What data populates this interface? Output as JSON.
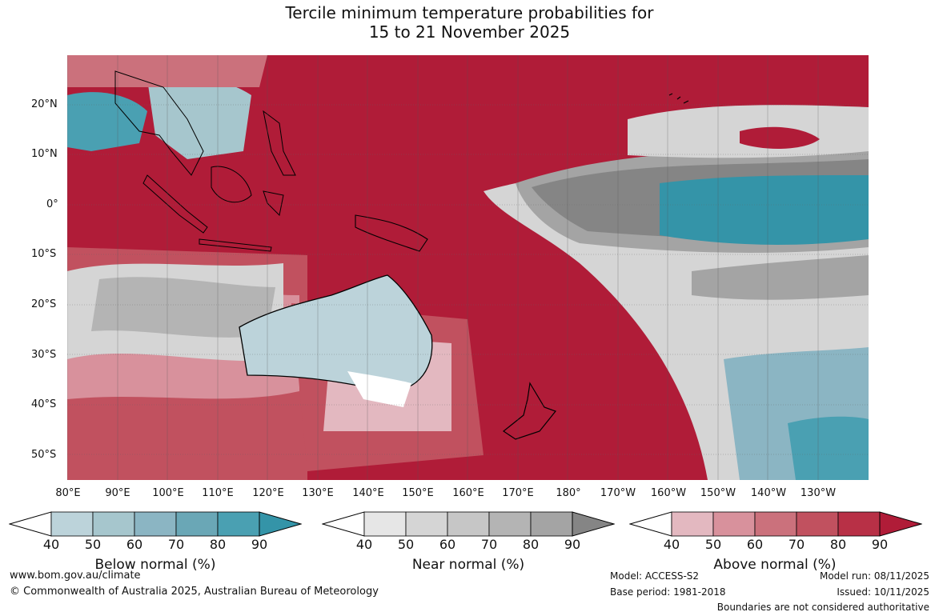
{
  "title_line1": "Tercile minimum temperature probabilities for",
  "title_line2": "15 to 21 November 2025",
  "lat_labels": [
    "20°N",
    "10°N",
    "0°",
    "10°S",
    "20°S",
    "30°S",
    "40°S",
    "50°S"
  ],
  "lon_labels": [
    "80°E",
    "90°E",
    "100°E",
    "110°E",
    "120°E",
    "130°E",
    "140°E",
    "150°E",
    "160°E",
    "170°E",
    "180°",
    "170°W",
    "160°W",
    "150°W",
    "140°W",
    "130°W"
  ],
  "colorbars": [
    {
      "label": "Below normal (%)",
      "ticks": [
        "40",
        "50",
        "60",
        "70",
        "80",
        "90"
      ],
      "colors": [
        "#ffffff",
        "#bcd3da",
        "#a6c6cd",
        "#8bb5c3",
        "#6aa7b6",
        "#4aa0b2",
        "#3494a8"
      ]
    },
    {
      "label": "Near normal (%)",
      "ticks": [
        "40",
        "50",
        "60",
        "70",
        "80",
        "90"
      ],
      "colors": [
        "#ffffff",
        "#e6e6e6",
        "#d5d5d5",
        "#c6c6c6",
        "#b4b4b4",
        "#a4a4a4",
        "#858585"
      ]
    },
    {
      "label": "Above normal (%)",
      "ticks": [
        "40",
        "50",
        "60",
        "70",
        "80",
        "90"
      ],
      "colors": [
        "#ffffff",
        "#e3b8c0",
        "#d8919c",
        "#cb717c",
        "#c1515f",
        "#b83046",
        "#b01c38"
      ]
    }
  ],
  "footer": {
    "website": "www.bom.gov.au/climate",
    "copyright": "© Commonwealth of Australia 2025, Australian Bureau of Meteorology",
    "model": "Model: ACCESS-S2",
    "base_period": "Base period: 1981-2018",
    "model_run": "Model run: 08/11/2025",
    "issued": "Issued: 10/11/2025",
    "disclaimer": "Boundaries are not considered authoritative"
  }
}
